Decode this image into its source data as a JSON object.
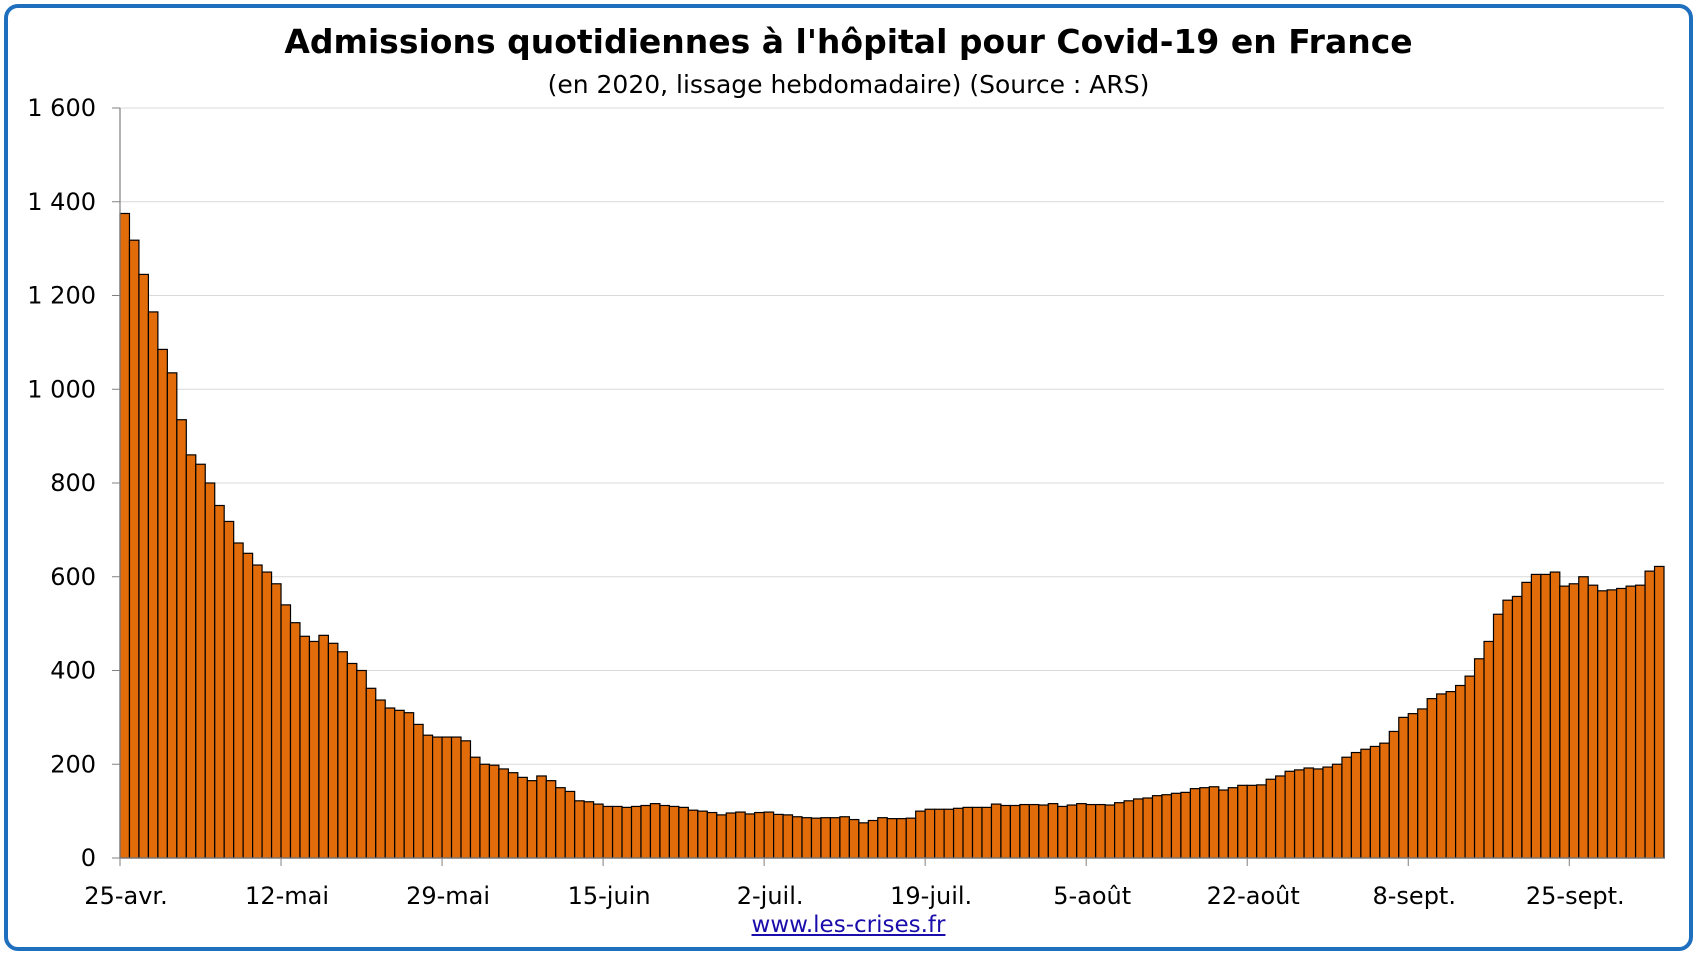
{
  "chart_data": {
    "type": "bar",
    "title": "Admissions quotidiennes à l'hôpital pour Covid-19 en France",
    "subtitle": "(en 2020, lissage hebdomadaire) (Source : ARS)",
    "xlabel": "",
    "ylabel": "",
    "ylim": [
      0,
      1600
    ],
    "yticks": [
      "0",
      "200",
      "400",
      "600",
      "800",
      "1 000",
      "1 200",
      "1 400",
      "1 600"
    ],
    "xtick_labels": [
      "25-avr.",
      "12-mai",
      "29-mai",
      "15-juin",
      "2-juil.",
      "19-juil.",
      "5-août",
      "22-août",
      "8-sept.",
      "25-sept."
    ],
    "xtick_index": [
      0,
      17,
      34,
      51,
      68,
      85,
      102,
      119,
      136,
      153
    ],
    "grid": true,
    "legend": "none",
    "bar_color": "#e36c0a",
    "bar_edge_color": "#000000",
    "values": [
      1375,
      1318,
      1245,
      1165,
      1085,
      1035,
      935,
      860,
      840,
      800,
      752,
      718,
      672,
      650,
      625,
      610,
      585,
      540,
      502,
      473,
      462,
      475,
      458,
      440,
      415,
      400,
      362,
      337,
      320,
      315,
      310,
      285,
      262,
      258,
      258,
      258,
      250,
      215,
      200,
      198,
      190,
      182,
      172,
      165,
      175,
      165,
      150,
      142,
      122,
      120,
      115,
      110,
      110,
      108,
      110,
      112,
      116,
      112,
      110,
      108,
      102,
      100,
      97,
      92,
      96,
      98,
      94,
      97,
      98,
      93,
      92,
      88,
      86,
      85,
      86,
      86,
      88,
      82,
      75,
      80,
      86,
      84,
      84,
      85,
      100,
      104,
      104,
      104,
      106,
      108,
      108,
      108,
      115,
      112,
      112,
      114,
      114,
      113,
      116,
      110,
      113,
      116,
      114,
      114,
      113,
      118,
      122,
      126,
      128,
      133,
      135,
      138,
      140,
      148,
      150,
      152,
      145,
      150,
      155,
      155,
      156,
      168,
      175,
      185,
      188,
      192,
      190,
      194,
      200,
      215,
      225,
      232,
      238,
      245,
      270,
      300,
      308,
      318,
      340,
      350,
      355,
      368,
      388,
      425,
      462,
      520,
      550,
      558,
      588,
      605,
      605,
      610,
      580,
      585,
      600,
      582,
      570,
      572,
      575,
      580,
      582,
      612,
      622
    ]
  },
  "footer": {
    "source_link": "www.les-crises.fr"
  }
}
